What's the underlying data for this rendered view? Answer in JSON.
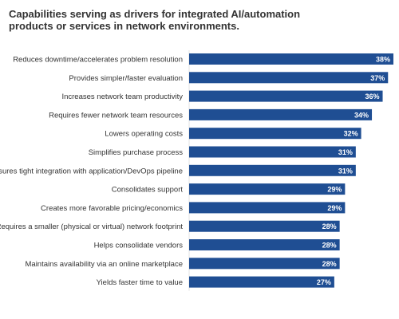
{
  "chart_data": {
    "type": "bar",
    "orientation": "horizontal",
    "title": "Capabilities serving as drivers for integrated AI/automation products or services in network environments.",
    "categories": [
      "Reduces downtime/accelerates problem resolution",
      "Provides simpler/faster evaluation",
      "Increases network team productivity",
      "Requires fewer network team resources",
      "Lowers operating costs",
      "Simplifies purchase process",
      "Ensures tight integration with application/DevOps pipeline",
      "Consolidates support",
      "Creates more favorable pricing/economics",
      "Requires a smaller (physical or virtual) network footprint",
      "Helps consolidate vendors",
      "Maintains availability via an online marketplace",
      "Yields faster time to value"
    ],
    "values": [
      38,
      37,
      36,
      34,
      32,
      31,
      31,
      29,
      29,
      28,
      28,
      28,
      27
    ],
    "value_suffix": "%",
    "xlim": [
      0,
      38
    ],
    "grid": false,
    "legend": "none",
    "bar_color": "#1f4e93"
  }
}
